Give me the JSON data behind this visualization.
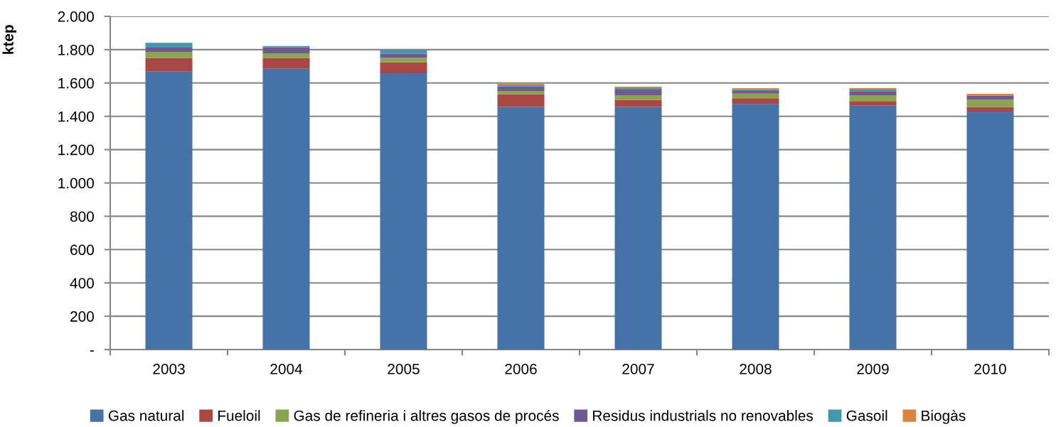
{
  "chart_data": {
    "type": "bar",
    "stacked": true,
    "ylabel": "ktep",
    "categories": [
      "2003",
      "2004",
      "2005",
      "2006",
      "2007",
      "2008",
      "2009",
      "2010"
    ],
    "series": [
      {
        "name": "Gas natural",
        "color": "#4572a7",
        "values": [
          1668,
          1685,
          1659,
          1456,
          1456,
          1474,
          1464,
          1429
        ]
      },
      {
        "name": "Fueloil",
        "color": "#aa4643",
        "values": [
          82,
          65,
          65,
          77,
          43,
          34,
          27,
          27
        ]
      },
      {
        "name": "Gas de refineria i altres gasos de procés",
        "color": "#89a54e",
        "values": [
          37,
          28,
          27,
          19,
          28,
          28,
          36,
          43
        ]
      },
      {
        "name": "Residus industrials no renovables",
        "color": "#71588f",
        "values": [
          25,
          35,
          25,
          27,
          34,
          16,
          24,
          25
        ]
      },
      {
        "name": "Gasoil",
        "color": "#4198af",
        "values": [
          29,
          9,
          20,
          7,
          8,
          10,
          10,
          0
        ]
      },
      {
        "name": "Biogàs",
        "color": "#db843d",
        "values": [
          0,
          0,
          0,
          10,
          9,
          7,
          8,
          11
        ]
      }
    ],
    "ylim": [
      0,
      2000
    ],
    "yticks": [
      {
        "value": 0,
        "label": "-"
      },
      200,
      400,
      600,
      800,
      {
        "value": 1000,
        "label": "1.000"
      },
      {
        "value": 1200,
        "label": "1.200"
      },
      {
        "value": 1400,
        "label": "1.400"
      },
      {
        "value": 1600,
        "label": "1.600"
      },
      {
        "value": 1800,
        "label": "1.800"
      },
      {
        "value": 2000,
        "label": "2.000"
      }
    ],
    "grid": "y",
    "legend": "bottom"
  }
}
